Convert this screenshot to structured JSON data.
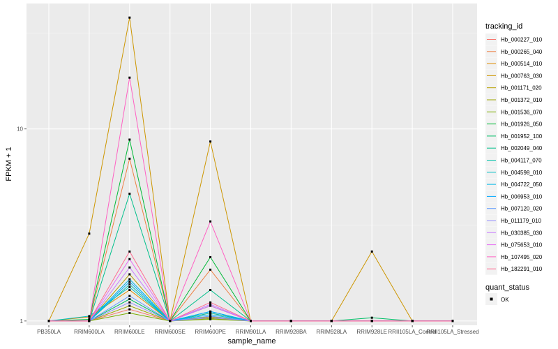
{
  "chart_data": {
    "type": "line",
    "xlabel": "sample_name",
    "ylabel": "FPKM + 1",
    "y_scale": "log10",
    "ylim": [
      0.95,
      45
    ],
    "y_ticks": [
      1,
      10
    ],
    "y_tick_labels": [
      "1",
      "10"
    ],
    "grid": true,
    "categories": [
      "PB350LA",
      "RRIM600LA",
      "RRIM600LE",
      "RRIM600SE",
      "RRIM600PE",
      "RRIM901LA",
      "RRIM928BA",
      "RRIM928LA",
      "RRIM928LE",
      "RRII105LA_Control",
      "RRII105LA_Stressed"
    ],
    "legend": {
      "title": "tracking_id",
      "position": "right",
      "shape_title": "quant_status",
      "shape_label": "OK"
    },
    "series": [
      {
        "name": "Hb_000227_010",
        "color": "#F8766D",
        "values": [
          1,
          1,
          1.15,
          1,
          1.05,
          1,
          1,
          1,
          1,
          1,
          1
        ]
      },
      {
        "name": "Hb_000265_040",
        "color": "#EE8044",
        "values": [
          1,
          1,
          7.0,
          1,
          1.85,
          1,
          1,
          1,
          1,
          1,
          1
        ]
      },
      {
        "name": "Hb_000514_010",
        "color": "#DE8C00",
        "values": [
          1,
          1.05,
          1.45,
          1,
          1.1,
          1,
          1,
          1,
          1,
          1,
          1
        ]
      },
      {
        "name": "Hb_000763_030",
        "color": "#CD9600",
        "values": [
          1,
          2.85,
          38,
          1,
          8.6,
          1,
          1,
          1,
          2.3,
          1,
          1
        ]
      },
      {
        "name": "Hb_001171_020",
        "color": "#B79F00",
        "values": [
          1,
          1,
          1.75,
          1,
          1.05,
          1,
          1,
          1,
          1,
          1,
          1
        ]
      },
      {
        "name": "Hb_001372_010",
        "color": "#9DA700",
        "values": [
          1,
          1,
          1.2,
          1,
          1.03,
          1,
          1,
          1,
          1,
          1,
          1
        ]
      },
      {
        "name": "Hb_001536_070",
        "color": "#7CAE00",
        "values": [
          1,
          1,
          1.1,
          1,
          1.02,
          1,
          1,
          1,
          1,
          1,
          1
        ]
      },
      {
        "name": "Hb_001926_050",
        "color": "#00BA38",
        "values": [
          1,
          1.02,
          8.8,
          1,
          2.15,
          1,
          1,
          1,
          1,
          1,
          1
        ]
      },
      {
        "name": "Hb_001952_100",
        "color": "#00BE67",
        "values": [
          1,
          1,
          1.3,
          1,
          1.2,
          1,
          1,
          1,
          1.04,
          1,
          1
        ]
      },
      {
        "name": "Hb_002049_040",
        "color": "#00C08B",
        "values": [
          1,
          1,
          4.6,
          1,
          1.45,
          1,
          1,
          1,
          1,
          1,
          1
        ]
      },
      {
        "name": "Hb_004117_070",
        "color": "#00C1A9",
        "values": [
          1,
          1,
          1.55,
          1,
          1.1,
          1,
          1,
          1,
          1,
          1,
          1
        ]
      },
      {
        "name": "Hb_004598_010",
        "color": "#00BFC4",
        "values": [
          1,
          1.06,
          1.5,
          1,
          1.12,
          1,
          1,
          1,
          1,
          1,
          1
        ]
      },
      {
        "name": "Hb_004722_050",
        "color": "#00B8E7",
        "values": [
          1,
          1,
          1.65,
          1,
          1.08,
          1,
          1,
          1,
          1,
          1,
          1
        ]
      },
      {
        "name": "Hb_006953_010",
        "color": "#00A9FF",
        "values": [
          1,
          1,
          1.6,
          1,
          1.12,
          1,
          1,
          1,
          1,
          1,
          1
        ]
      },
      {
        "name": "Hb_007120_020",
        "color": "#619CFF",
        "values": [
          1,
          1,
          1.35,
          1,
          1.06,
          1,
          1,
          1,
          1,
          1,
          1
        ]
      },
      {
        "name": "Hb_011179_010",
        "color": "#9590FF",
        "values": [
          1,
          1,
          1.25,
          1,
          1.04,
          1,
          1,
          1,
          1,
          1,
          1
        ]
      },
      {
        "name": "Hb_030385_030",
        "color": "#C77CFF",
        "values": [
          1,
          1,
          1.9,
          1,
          1.22,
          1,
          1,
          1,
          1,
          1,
          1
        ]
      },
      {
        "name": "Hb_075653_010",
        "color": "#E76BF3",
        "values": [
          1,
          1,
          2.1,
          1,
          1.2,
          1,
          1,
          1,
          1,
          1,
          1
        ]
      },
      {
        "name": "Hb_107495_020",
        "color": "#FF61C3",
        "values": [
          1,
          1,
          18.5,
          1,
          3.3,
          1,
          1,
          1,
          1,
          1,
          1
        ]
      },
      {
        "name": "Hb_182291_010",
        "color": "#FF6C91",
        "values": [
          1,
          1,
          2.3,
          1,
          1.25,
          1,
          1,
          1,
          1,
          1,
          1
        ]
      }
    ]
  }
}
